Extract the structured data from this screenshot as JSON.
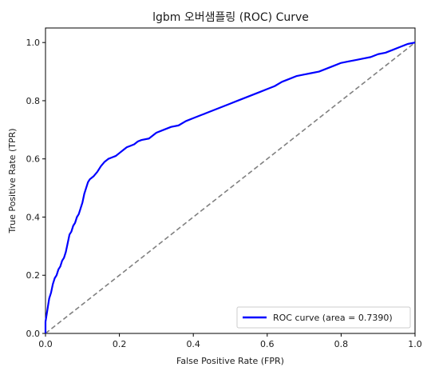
{
  "chart_data": {
    "type": "line",
    "title": "lgbm 오버샘플링 (ROC) Curve",
    "xlabel": "False Positive Rate (FPR)",
    "ylabel": "True Positive Rate (TPR)",
    "xlim": [
      0,
      1
    ],
    "ylim": [
      0,
      1.05
    ],
    "x_ticks": [
      "0.0",
      "0.2",
      "0.4",
      "0.6",
      "0.8",
      "1.0"
    ],
    "y_ticks": [
      "0.0",
      "0.2",
      "0.4",
      "0.6",
      "0.8",
      "1.0"
    ],
    "grid": false,
    "legend_position": "lower-right",
    "series": [
      {
        "name": "ROC curve (area = 0.7390)",
        "color": "#0000ff",
        "style": "solid",
        "x": [
          0.0,
          0.0,
          0.005,
          0.01,
          0.015,
          0.02,
          0.025,
          0.03,
          0.035,
          0.04,
          0.045,
          0.05,
          0.055,
          0.06,
          0.065,
          0.07,
          0.075,
          0.08,
          0.085,
          0.09,
          0.095,
          0.1,
          0.105,
          0.11,
          0.115,
          0.12,
          0.125,
          0.13,
          0.14,
          0.15,
          0.16,
          0.17,
          0.18,
          0.19,
          0.2,
          0.21,
          0.22,
          0.23,
          0.24,
          0.25,
          0.26,
          0.28,
          0.3,
          0.32,
          0.34,
          0.36,
          0.38,
          0.4,
          0.42,
          0.44,
          0.46,
          0.48,
          0.5,
          0.52,
          0.54,
          0.56,
          0.58,
          0.6,
          0.62,
          0.64,
          0.66,
          0.68,
          0.7,
          0.72,
          0.74,
          0.76,
          0.78,
          0.8,
          0.82,
          0.84,
          0.86,
          0.88,
          0.9,
          0.92,
          0.94,
          0.96,
          0.98,
          1.0
        ],
        "y": [
          0.0,
          0.04,
          0.08,
          0.12,
          0.14,
          0.17,
          0.19,
          0.2,
          0.22,
          0.23,
          0.25,
          0.26,
          0.28,
          0.31,
          0.34,
          0.35,
          0.37,
          0.38,
          0.4,
          0.41,
          0.43,
          0.45,
          0.48,
          0.5,
          0.52,
          0.53,
          0.535,
          0.54,
          0.555,
          0.575,
          0.59,
          0.6,
          0.605,
          0.61,
          0.62,
          0.63,
          0.64,
          0.645,
          0.65,
          0.66,
          0.665,
          0.67,
          0.69,
          0.7,
          0.71,
          0.715,
          0.73,
          0.74,
          0.75,
          0.76,
          0.77,
          0.78,
          0.79,
          0.8,
          0.81,
          0.82,
          0.83,
          0.84,
          0.85,
          0.865,
          0.875,
          0.885,
          0.89,
          0.895,
          0.9,
          0.91,
          0.92,
          0.93,
          0.935,
          0.94,
          0.945,
          0.95,
          0.96,
          0.965,
          0.975,
          0.985,
          0.995,
          1.0
        ]
      },
      {
        "name": "",
        "color": "#808080",
        "style": "dashed",
        "x": [
          0,
          1
        ],
        "y": [
          0,
          1
        ]
      }
    ]
  }
}
